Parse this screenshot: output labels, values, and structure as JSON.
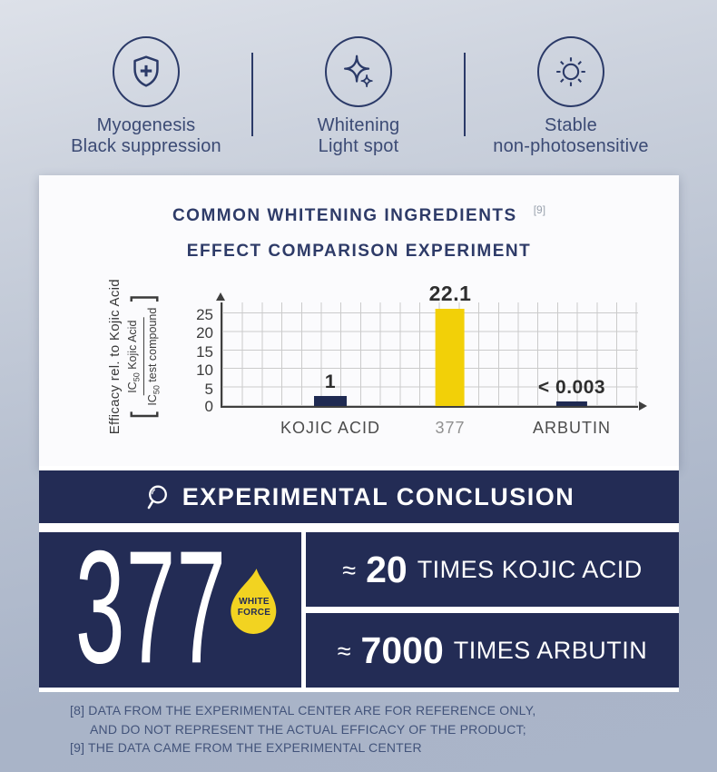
{
  "colors": {
    "navy": "#232c55",
    "icon_navy": "#2b3a68",
    "yellow": "#f2d008",
    "background_top": "#dde1e9",
    "background_bottom": "#aab5c9",
    "card_bg": "#fbfbfd",
    "footnote_text": "#42537a"
  },
  "features": [
    {
      "icon": "shield-plus-icon",
      "line1": "Myogenesis",
      "line2": "Black suppression"
    },
    {
      "icon": "sparkle-icon",
      "line1": "Whitening",
      "line2": "Light spot"
    },
    {
      "icon": "sun-icon",
      "line1": "Stable",
      "line2": "non-photosensitive"
    }
  ],
  "chart_card": {
    "title_line1": "COMMON WHITENING INGREDIENTS",
    "title_line2": "EFFECT COMPARISON EXPERIMENT",
    "footnote_ref": "[9]",
    "y_axis": {
      "label_text": "Efficacy  rel. to Kojic Acid",
      "bracket_open": "[",
      "bracket_close": "]",
      "num_prefix": "IC",
      "num_sub": "50",
      "num_rest": " Kojic Acid",
      "den_prefix": "IC",
      "den_sub": "50",
      "den_rest": " test compound"
    }
  },
  "chart_data": {
    "type": "bar",
    "title": "COMMON WHITENING INGREDIENTS EFFECT COMPARISON EXPERIMENT",
    "categories": [
      "KOJIC ACID",
      "377",
      "ARBUTIN"
    ],
    "values": [
      1,
      22.1,
      0.003
    ],
    "value_labels": [
      "1",
      "22.1",
      "< 0.003"
    ],
    "ylabel": "Efficacy rel. to Kojic Acid [IC50 Kojic Acid / IC50 test compound]",
    "ylim": [
      0,
      25
    ],
    "yticks": [
      0,
      5,
      10,
      15,
      20,
      25
    ],
    "ytick_labels_top_down": [
      "25",
      "20",
      "15",
      "10",
      "5",
      "0"
    ],
    "grid": true,
    "bar_colors": [
      "#1f2a52",
      "#f2d008",
      "#1f2a52"
    ],
    "category_colors": [
      "#4c4c4c",
      "#909090",
      "#4c4c4c"
    ],
    "drawn_heights_units": [
      2.7,
      26.2,
      1.2
    ],
    "note": "bars drawn not to scale in source image"
  },
  "conclusion": {
    "heading": "EXPERIMENTAL CONCLUSION",
    "product": "377",
    "badge": {
      "line1": "WHITE",
      "line2": "FORCE"
    },
    "comparisons": [
      {
        "approx": "≈",
        "value": "20",
        "rest": "TIMES KOJIC ACID"
      },
      {
        "approx": "≈",
        "value": "7000",
        "rest": "TIMES ARBUTIN"
      }
    ]
  },
  "footnotes": [
    "[8] DATA FROM THE EXPERIMENTAL CENTER ARE FOR REFERENCE ONLY,",
    "AND DO NOT REPRESENT THE ACTUAL EFFICACY OF THE PRODUCT;",
    "[9] THE DATA CAME FROM THE EXPERIMENTAL CENTER"
  ]
}
